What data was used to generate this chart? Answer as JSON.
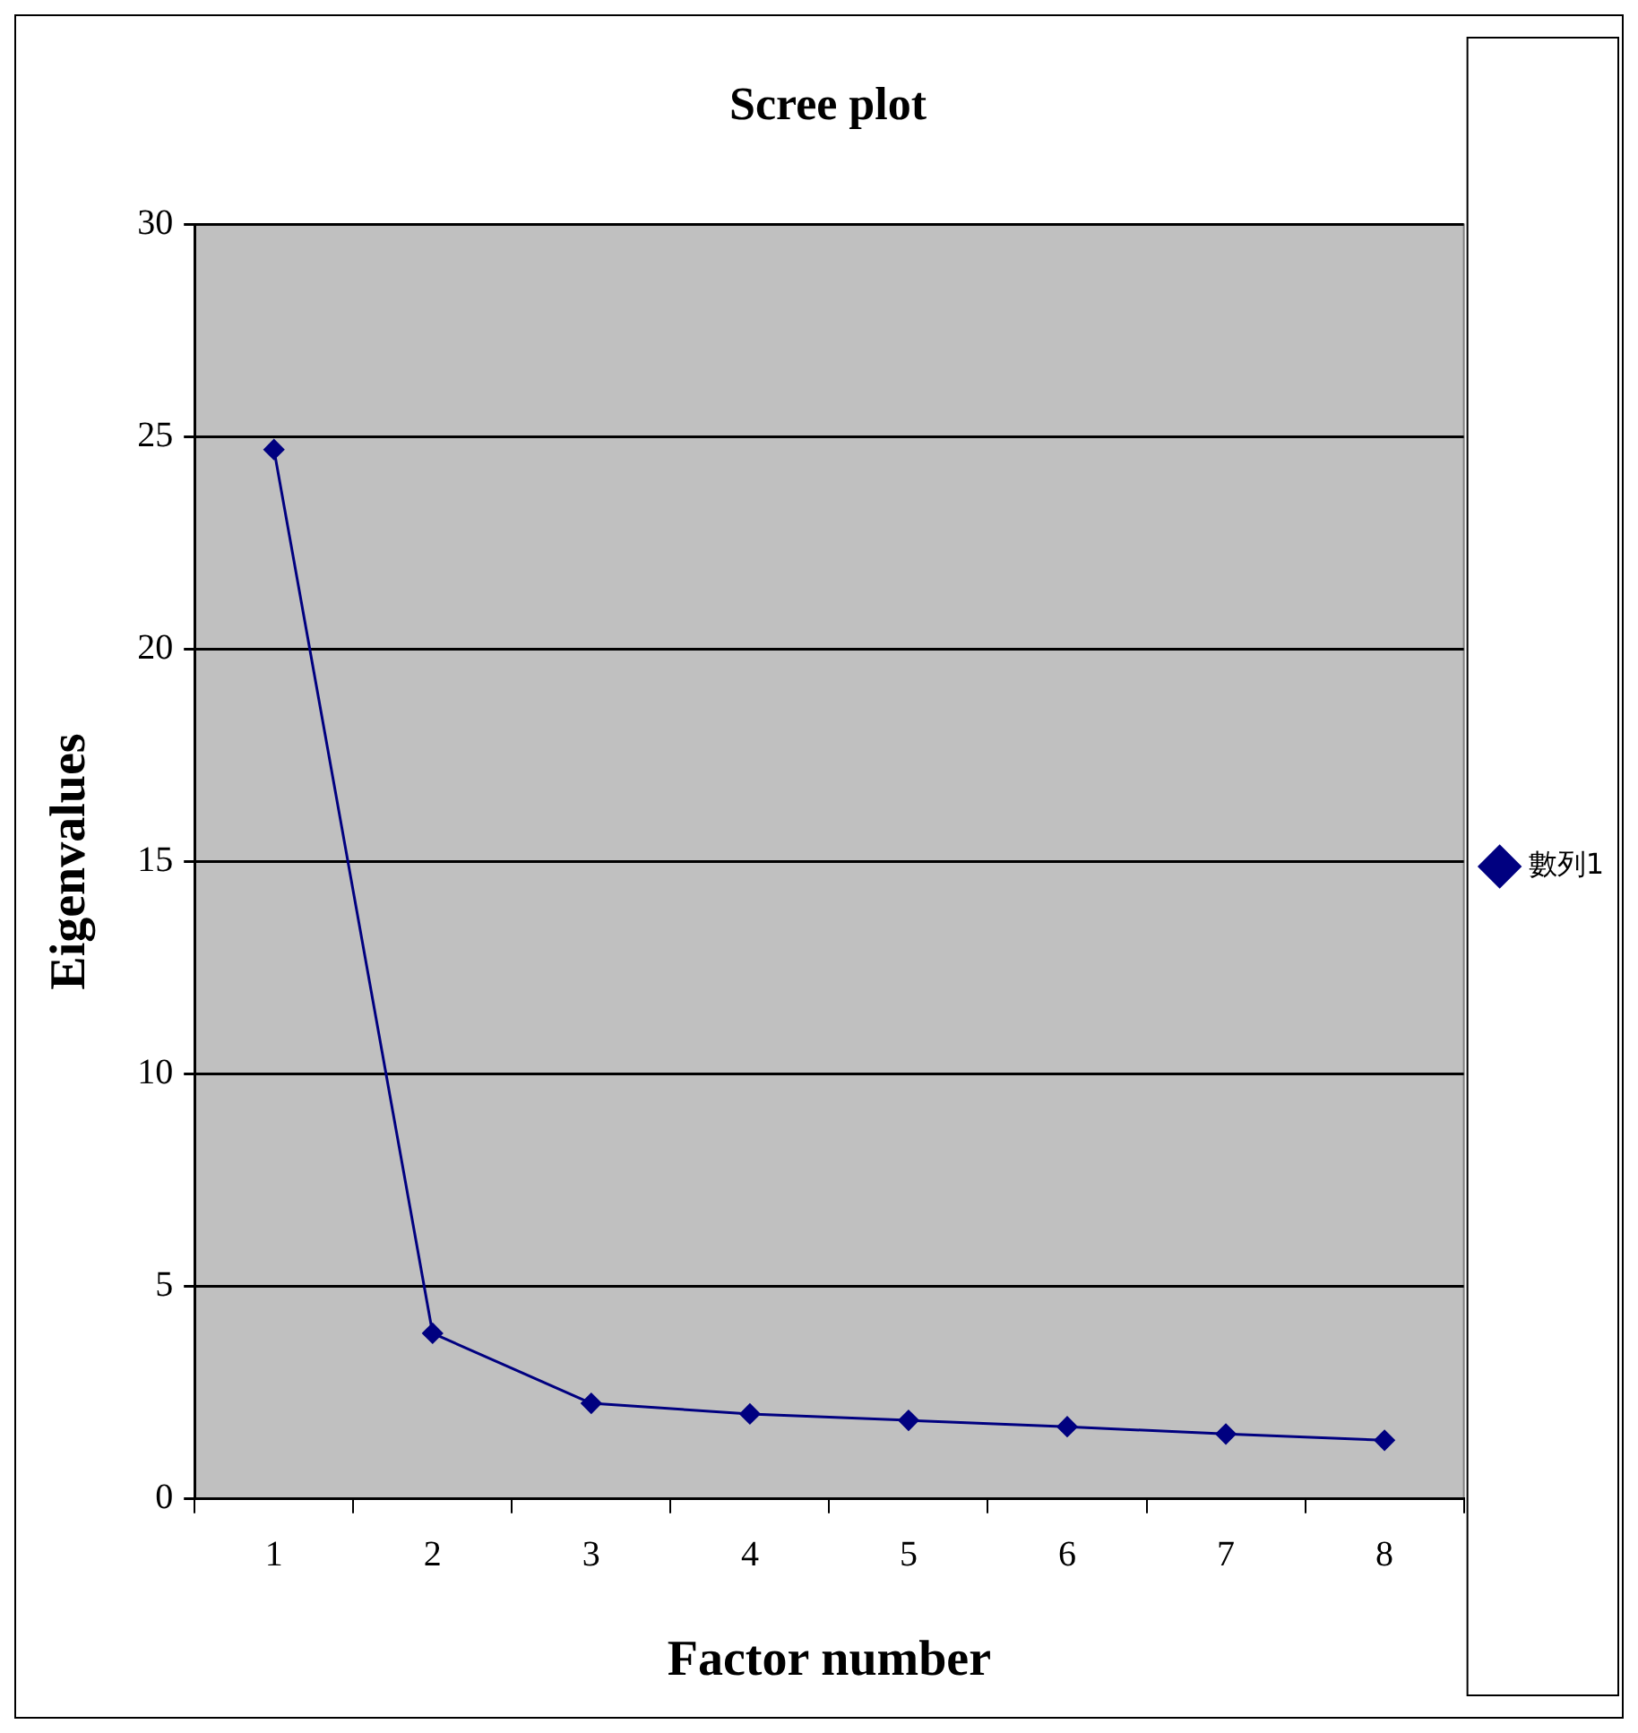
{
  "chart_data": {
    "type": "line",
    "title": "Scree plot",
    "xlabel": "Factor number",
    "ylabel": "Eigenvalues",
    "categories": [
      "1",
      "2",
      "3",
      "4",
      "5",
      "6",
      "7",
      "8"
    ],
    "series": [
      {
        "name": "數列1",
        "color": "#000080",
        "values": [
          24.7,
          3.9,
          2.25,
          2.0,
          1.85,
          1.7,
          1.53,
          1.38
        ]
      }
    ],
    "ylim": [
      0,
      30
    ],
    "yticks": [
      0,
      5,
      10,
      15,
      20,
      25,
      30
    ],
    "grid": "y",
    "legend": "right",
    "marker": "diamond",
    "line_style": "solid"
  }
}
